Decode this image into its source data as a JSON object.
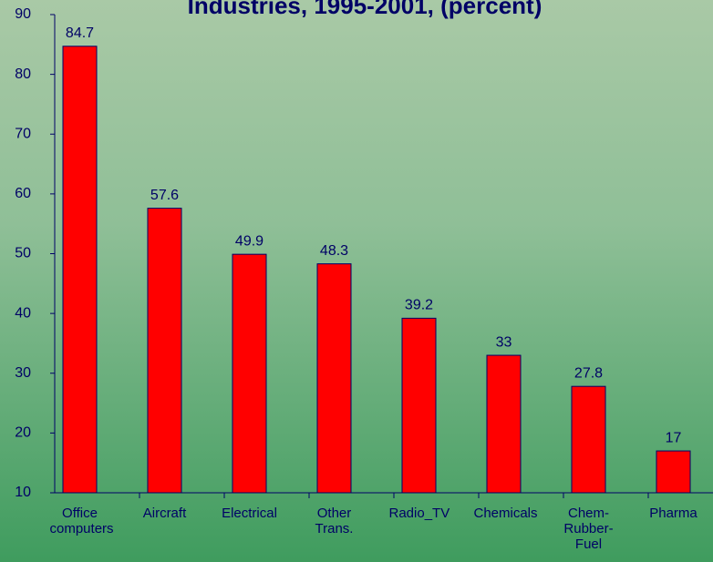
{
  "chart_data": {
    "type": "bar",
    "title": "Industries, 1995-2001, (percent)",
    "categories": [
      "Office computers",
      "Aircraft",
      "Electrical",
      "Other Trans.",
      "Radio_TV",
      "Chemicals",
      "Chem-Rubber-Fuel",
      "Pharma"
    ],
    "values": [
      84.7,
      57.6,
      49.9,
      48.3,
      39.2,
      33,
      27.8,
      17
    ],
    "color": "#ff0000",
    "ylim": [
      10,
      90
    ],
    "yticks": [
      10,
      20,
      30,
      40,
      50,
      60,
      70,
      80,
      90
    ],
    "grid": false
  }
}
